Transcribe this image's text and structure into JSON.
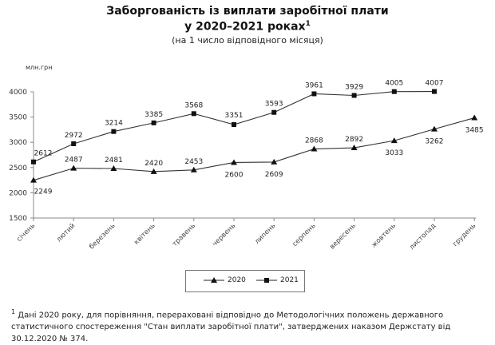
{
  "title_line1": "Заборгованість із виплати заробітної плати",
  "title_line2": "у 2020–2021 роках",
  "title_sup": "1",
  "subtitle": "(на 1 число відповідного місяця)",
  "unit_label": "млн.грн",
  "legend": {
    "s2020": "2020",
    "s2021": "2021"
  },
  "footnote": {
    "marker": "1",
    "text": " Дані 2020 року, для порівняння, перераховані відповідно до Методологічних положень  державного статистичного спостереження \"Стан виплати заробітної плати\", затверджених наказом Держстату від 30.12.2020 № 374."
  },
  "chart_data": {
    "type": "line",
    "title": "Заборгованість із виплати заробітної плати у 2020–2021 роках",
    "subtitle": "(на 1 число відповідного місяця)",
    "xlabel": "",
    "ylabel": "млн.грн",
    "ylim": [
      1500,
      4000
    ],
    "yticks": [
      1500,
      2000,
      2500,
      3000,
      3500,
      4000
    ],
    "grid": false,
    "legend_position": "bottom",
    "categories": [
      "січень",
      "лютий",
      "березень",
      "квітень",
      "травень",
      "червень",
      "липень",
      "серпень",
      "вересень",
      "жовтень",
      "листопад",
      "грудень"
    ],
    "series": [
      {
        "name": "2020",
        "marker": "triangle",
        "values": [
          2249,
          2487,
          2481,
          2420,
          2453,
          2600,
          2609,
          2868,
          2892,
          3033,
          3262,
          3485
        ]
      },
      {
        "name": "2021",
        "marker": "square",
        "values": [
          2612,
          2972,
          3214,
          3385,
          3568,
          3351,
          3593,
          3961,
          3929,
          4005,
          4007,
          null
        ]
      }
    ]
  }
}
